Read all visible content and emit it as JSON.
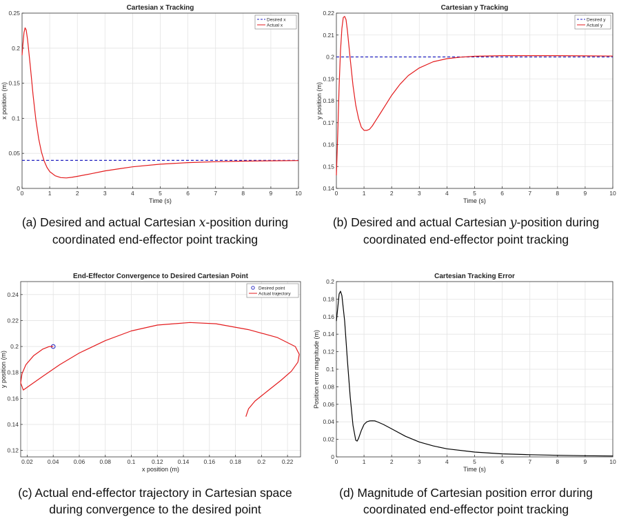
{
  "captions": {
    "a_pre": "(a) Desired and actual Cartesian ",
    "a_var": "x",
    "a_post": "-position during",
    "a_line2": "coordinated end-effector point tracking",
    "b_pre": "(b) Desired and actual Cartesian ",
    "b_var": "y",
    "b_post": "-position during",
    "b_line2": "coordinated end-effector point tracking",
    "c_line1": "(c) Actual end-effector trajectory in Cartesian space",
    "c_line2": "during convergence to the desired point",
    "d_line1": "(d) Magnitude of Cartesian position error during",
    "d_line2": "coordinated end-effector point tracking"
  },
  "chart_data": [
    {
      "type": "line",
      "title": "Cartesian x Tracking",
      "xlabel": "Time (s)",
      "ylabel": "x position (m)",
      "xlim": [
        0,
        10
      ],
      "ylim": [
        0,
        0.25
      ],
      "xticks": [
        "0",
        "1",
        "2",
        "3",
        "4",
        "5",
        "6",
        "7",
        "8",
        "9",
        "10"
      ],
      "yticks": [
        "0",
        "0.05",
        "0.1",
        "0.15",
        "0.2",
        "0.25"
      ],
      "grid": true,
      "legend": "top-right",
      "series": [
        {
          "name": "Desired x",
          "color": "#1f1fbf",
          "dashed": true,
          "x": [
            0,
            10
          ],
          "y": [
            0.04,
            0.04
          ]
        },
        {
          "name": "Actual x",
          "color": "#e31a1c",
          "dashed": false,
          "x": [
            0,
            0.03,
            0.07,
            0.11,
            0.15,
            0.2,
            0.3,
            0.4,
            0.5,
            0.6,
            0.7,
            0.8,
            0.9,
            1.0,
            1.2,
            1.4,
            1.6,
            1.8,
            2.0,
            2.5,
            3.0,
            3.5,
            4.0,
            5.0,
            6.0,
            7.0,
            8.0,
            9.0,
            10.0
          ],
          "y": [
            0.19,
            0.205,
            0.222,
            0.229,
            0.226,
            0.212,
            0.174,
            0.133,
            0.098,
            0.071,
            0.052,
            0.039,
            0.03,
            0.024,
            0.018,
            0.0155,
            0.015,
            0.0158,
            0.0172,
            0.021,
            0.025,
            0.028,
            0.0308,
            0.0345,
            0.0368,
            0.0381,
            0.0389,
            0.0394,
            0.0397
          ]
        }
      ]
    },
    {
      "type": "line",
      "title": "Cartesian y Tracking",
      "xlabel": "Time (s)",
      "ylabel": "y position (m)",
      "xlim": [
        0,
        10
      ],
      "ylim": [
        0.14,
        0.22
      ],
      "xticks": [
        "0",
        "1",
        "2",
        "3",
        "4",
        "5",
        "6",
        "7",
        "8",
        "9",
        "10"
      ],
      "yticks": [
        "0.14",
        "0.15",
        "0.16",
        "0.17",
        "0.18",
        "0.19",
        "0.2",
        "0.21",
        "0.22"
      ],
      "grid": true,
      "legend": "top-right",
      "series": [
        {
          "name": "Desired y",
          "color": "#1f1fbf",
          "dashed": true,
          "x": [
            0,
            10
          ],
          "y": [
            0.2,
            0.2
          ]
        },
        {
          "name": "Actual y",
          "color": "#e31a1c",
          "dashed": false,
          "x": [
            0,
            0.05,
            0.1,
            0.15,
            0.2,
            0.25,
            0.3,
            0.35,
            0.4,
            0.5,
            0.6,
            0.7,
            0.8,
            0.9,
            1.0,
            1.1,
            1.2,
            1.3,
            1.4,
            1.6,
            1.8,
            2.0,
            2.3,
            2.6,
            3.0,
            3.5,
            4.0,
            4.5,
            5.0,
            6.0,
            7.0,
            8.0,
            9.0,
            10.0
          ],
          "y": [
            0.146,
            0.165,
            0.187,
            0.203,
            0.213,
            0.218,
            0.2185,
            0.217,
            0.212,
            0.199,
            0.187,
            0.178,
            0.172,
            0.168,
            0.1665,
            0.1665,
            0.167,
            0.1685,
            0.1705,
            0.1745,
            0.1785,
            0.1825,
            0.1875,
            0.1915,
            0.195,
            0.1978,
            0.1992,
            0.1999,
            0.2003,
            0.2006,
            0.2006,
            0.2006,
            0.2005,
            0.2004
          ]
        }
      ]
    },
    {
      "type": "line",
      "title": "End-Effector Convergence to Desired Cartesian Point",
      "xlabel": "x position (m)",
      "ylabel": "y position (m)",
      "xlim": [
        0.015,
        0.23
      ],
      "ylim": [
        0.115,
        0.25
      ],
      "xticks": [
        "0.02",
        "0.04",
        "0.06",
        "0.08",
        "0.1",
        "0.12",
        "0.14",
        "0.16",
        "0.18",
        "0.2",
        "0.22"
      ],
      "yticks": [
        "0.12",
        "0.14",
        "0.16",
        "0.18",
        "0.2",
        "0.22",
        "0.24"
      ],
      "grid": true,
      "legend": "top-right",
      "series": [
        {
          "name": "Desired point",
          "color": "#1f1fbf",
          "marker": "circle",
          "x": [
            0.04
          ],
          "y": [
            0.2
          ]
        },
        {
          "name": "Actual trajectory",
          "color": "#e31a1c",
          "x": [
            0.188,
            0.19,
            0.195,
            0.205,
            0.215,
            0.223,
            0.228,
            0.229,
            0.226,
            0.212,
            0.19,
            0.165,
            0.145,
            0.12,
            0.1,
            0.08,
            0.06,
            0.045,
            0.032,
            0.022,
            0.017,
            0.015,
            0.016,
            0.019,
            0.025,
            0.032,
            0.037,
            0.04
          ],
          "y": [
            0.146,
            0.152,
            0.158,
            0.166,
            0.174,
            0.181,
            0.188,
            0.194,
            0.2,
            0.207,
            0.213,
            0.2175,
            0.2185,
            0.2165,
            0.212,
            0.2045,
            0.195,
            0.186,
            0.177,
            0.17,
            0.1665,
            0.172,
            0.179,
            0.186,
            0.193,
            0.198,
            0.2,
            0.2
          ]
        }
      ]
    },
    {
      "type": "line",
      "title": "Cartesian Tracking Error",
      "xlabel": "Time (s)",
      "ylabel": "Position error magnitude (m)",
      "xlim": [
        0,
        10
      ],
      "ylim": [
        0,
        0.2
      ],
      "xticks": [
        "0",
        "1",
        "2",
        "3",
        "4",
        "5",
        "6",
        "7",
        "8",
        "9",
        "10"
      ],
      "yticks": [
        "0",
        "0.02",
        "0.04",
        "0.06",
        "0.08",
        "0.1",
        "0.12",
        "0.14",
        "0.16",
        "0.18",
        "0.2"
      ],
      "grid": true,
      "series": [
        {
          "color": "#000000",
          "x": [
            0,
            0.05,
            0.1,
            0.15,
            0.2,
            0.3,
            0.4,
            0.5,
            0.6,
            0.7,
            0.75,
            0.8,
            0.9,
            1.0,
            1.1,
            1.2,
            1.3,
            1.4,
            1.5,
            1.7,
            2.0,
            2.5,
            3.0,
            3.5,
            4.0,
            5.0,
            6.0,
            7.0,
            8.0,
            9.0,
            10.0
          ],
          "y": [
            0.155,
            0.17,
            0.186,
            0.189,
            0.184,
            0.155,
            0.11,
            0.068,
            0.036,
            0.019,
            0.018,
            0.021,
            0.03,
            0.037,
            0.04,
            0.041,
            0.0412,
            0.041,
            0.0398,
            0.037,
            0.032,
            0.0235,
            0.017,
            0.0125,
            0.0092,
            0.0055,
            0.0035,
            0.0025,
            0.0018,
            0.0013,
            0.001
          ]
        }
      ]
    }
  ]
}
